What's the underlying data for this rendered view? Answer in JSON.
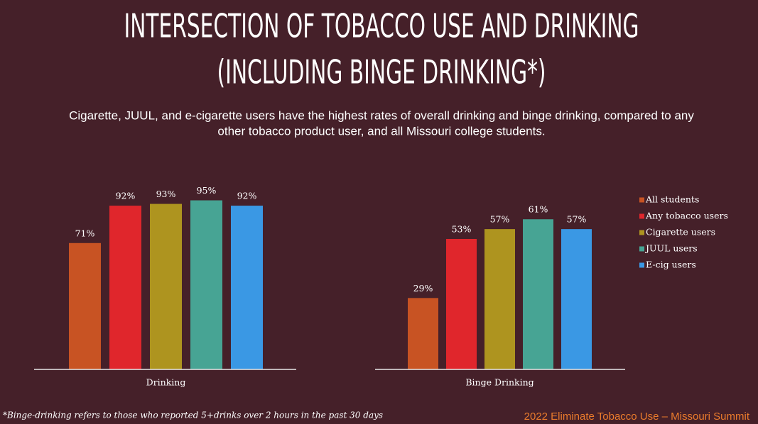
{
  "slide": {
    "title": [
      "INTERSECTION OF TOBACCO USE AND DRINKING",
      "(INCLUDING BINGE DRINKING*)"
    ],
    "subtitle": [
      "Cigarette, JUUL, and e-cigarette users have the highest rates of overall drinking and binge drinking, compared to any",
      "other tobacco product user, and all Missouri college students."
    ],
    "footnote": "*Binge-drinking refers to those who reported 5+drinks over 2 hours in the past 30 days",
    "footer": "2022 Eliminate Tobacco Use – Missouri Summit"
  },
  "chart_data": [
    {
      "type": "bar",
      "categories": [
        "Drinking"
      ],
      "ylim": [
        0,
        100
      ],
      "series": [
        {
          "color": "#c85323",
          "values": [
            71
          ],
          "value_labels": [
            "71%"
          ]
        },
        {
          "color": "#e0262c",
          "values": [
            92
          ],
          "value_labels": [
            "92%"
          ]
        },
        {
          "color": "#ae941f",
          "values": [
            93
          ],
          "value_labels": [
            "93%"
          ]
        },
        {
          "color": "#47a494",
          "values": [
            95
          ],
          "value_labels": [
            "95%"
          ]
        },
        {
          "color": "#3a98e4",
          "values": [
            92
          ],
          "value_labels": [
            "92%"
          ]
        }
      ]
    },
    {
      "type": "bar",
      "categories": [
        "Binge Drinking"
      ],
      "ylim": [
        0,
        70
      ],
      "legend": "right",
      "series": [
        {
          "name": "All students",
          "color": "#c85323",
          "values": [
            29
          ],
          "value_labels": [
            "29%"
          ]
        },
        {
          "name": "Any tobacco users",
          "color": "#e0262c",
          "values": [
            53
          ],
          "value_labels": [
            "53%"
          ]
        },
        {
          "name": "Cigarette users",
          "color": "#ae941f",
          "values": [
            57
          ],
          "value_labels": [
            "57%"
          ]
        },
        {
          "name": "JUUL users",
          "color": "#47a494",
          "values": [
            61
          ],
          "value_labels": [
            "61%"
          ]
        },
        {
          "name": "E-cig users",
          "color": "#3a98e4",
          "values": [
            57
          ],
          "value_labels": [
            "57%"
          ]
        }
      ]
    }
  ]
}
